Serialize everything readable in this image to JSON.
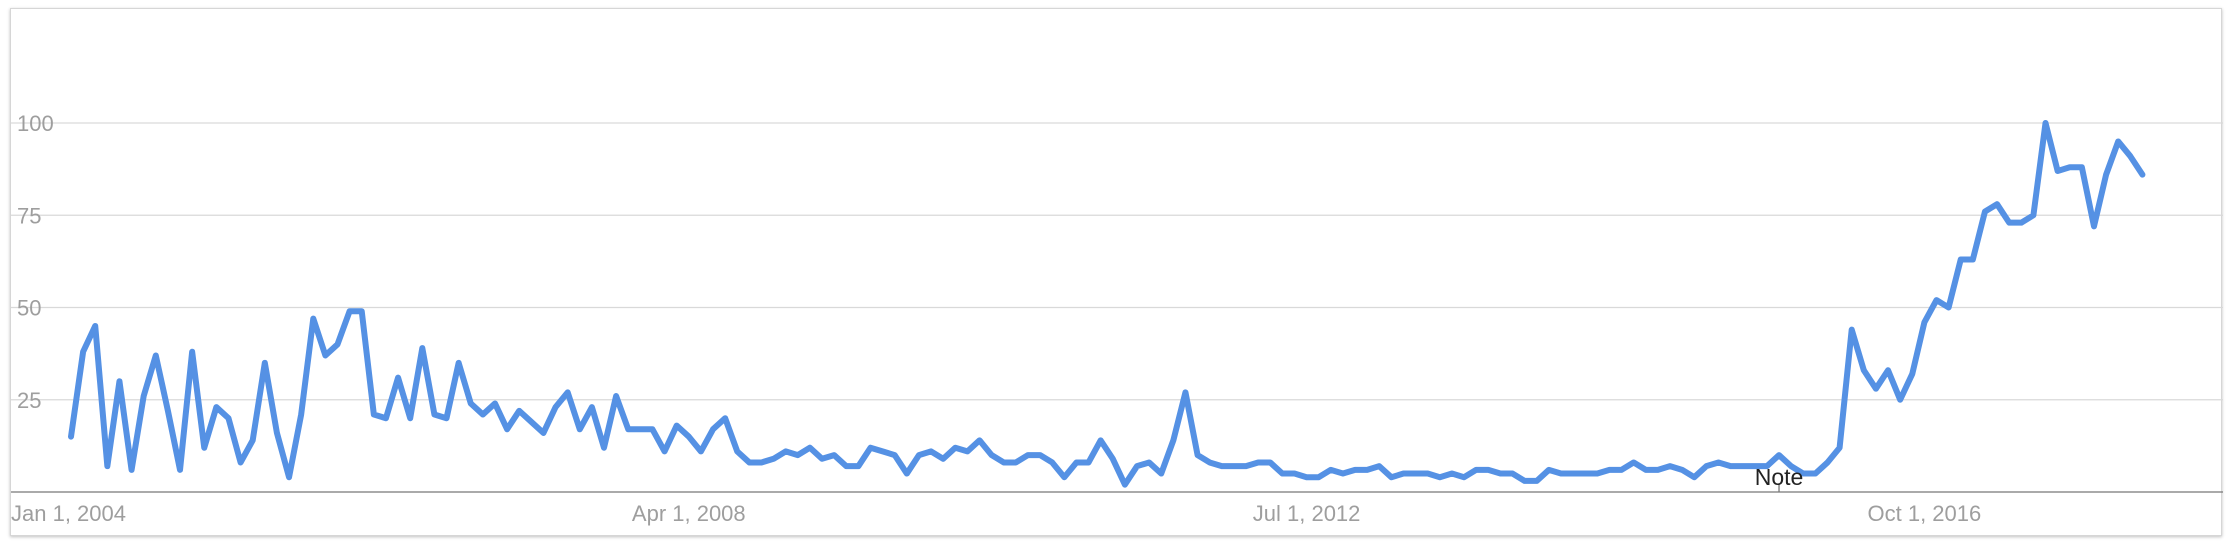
{
  "chart_data": {
    "type": "line",
    "title": "",
    "xlabel": "",
    "ylabel": "",
    "ylim": [
      0,
      125
    ],
    "grid": true,
    "y_ticks": [
      25,
      50,
      75,
      100
    ],
    "x_ticks": [
      {
        "label": "Jan 1, 2004",
        "date": "2004-01"
      },
      {
        "label": "Apr 1, 2008",
        "date": "2008-04"
      },
      {
        "label": "Jul 1, 2012",
        "date": "2012-07"
      },
      {
        "label": "Oct 1, 2016",
        "date": "2016-10"
      }
    ],
    "annotations": [
      {
        "text": "Note",
        "date": "2015-10"
      }
    ],
    "series_color": "#5591e4",
    "series": [
      {
        "x_start": "2004-01",
        "x_end": "2018-09",
        "values": [
          15,
          38,
          45,
          7,
          30,
          6,
          26,
          37,
          22,
          6,
          38,
          12,
          23,
          20,
          8,
          14,
          35,
          16,
          4,
          21,
          47,
          37,
          40,
          49,
          49,
          21,
          20,
          31,
          20,
          39,
          21,
          20,
          35,
          24,
          21,
          24,
          17,
          22,
          19,
          16,
          23,
          27,
          17,
          23,
          12,
          26,
          17,
          17,
          17,
          11,
          18,
          15,
          11,
          17,
          20,
          11,
          8,
          8,
          9,
          11,
          10,
          12,
          9,
          10,
          7,
          7,
          12,
          11,
          10,
          5,
          10,
          11,
          9,
          12,
          11,
          14,
          10,
          8,
          8,
          10,
          10,
          8,
          4,
          8,
          8,
          14,
          9,
          2,
          7,
          8,
          5,
          14,
          27,
          10,
          8,
          7,
          7,
          7,
          8,
          8,
          5,
          5,
          4,
          4,
          6,
          5,
          6,
          6,
          7,
          4,
          5,
          5,
          5,
          4,
          5,
          4,
          6,
          6,
          5,
          5,
          3,
          3,
          6,
          5,
          5,
          5,
          5,
          6,
          6,
          8,
          6,
          6,
          7,
          6,
          4,
          7,
          8,
          7,
          7,
          7,
          7,
          10,
          7,
          5,
          5,
          8,
          12,
          44,
          33,
          28,
          33,
          25,
          32,
          46,
          52,
          50,
          63,
          63,
          76,
          78,
          73,
          73,
          75,
          100,
          87,
          88,
          88,
          72,
          86,
          95,
          91,
          86
        ]
      }
    ]
  }
}
